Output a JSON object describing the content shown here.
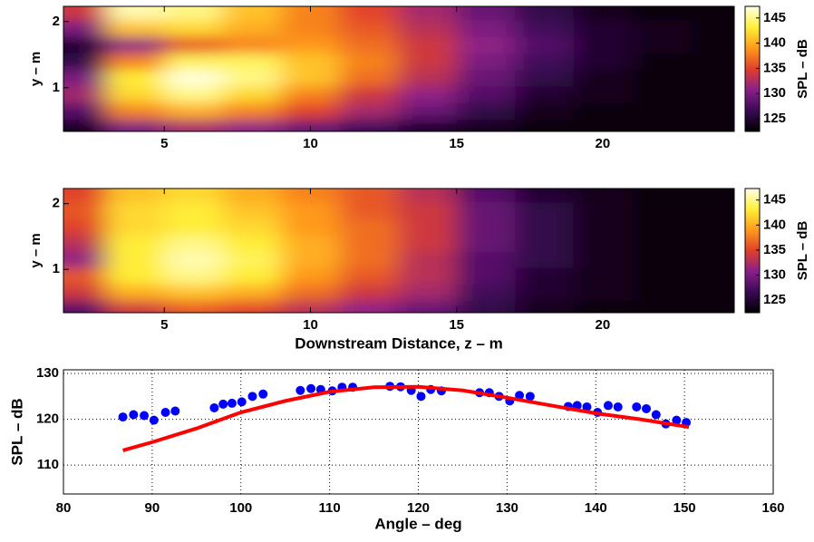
{
  "chart_data": [
    {
      "type": "heatmap",
      "ylabel": "y – m",
      "colorbar_label": "SPL – dB",
      "x": [
        2,
        4,
        6,
        8,
        10,
        12,
        14,
        16,
        18,
        20,
        22,
        24
      ],
      "y": [
        0.4,
        0.65,
        0.9,
        1.15,
        1.4,
        1.65,
        1.9,
        2.15
      ],
      "z": [
        [
          124,
          130,
          132,
          131,
          129,
          127,
          125,
          124,
          123,
          123,
          123,
          123
        ],
        [
          128,
          138,
          140,
          138,
          135,
          132,
          129,
          126,
          124,
          123,
          123,
          123
        ],
        [
          132,
          142,
          145,
          142,
          138,
          134,
          131,
          128,
          125,
          124,
          123,
          123
        ],
        [
          130,
          143,
          147,
          145,
          141,
          137,
          133,
          129,
          126,
          124,
          123,
          123
        ],
        [
          126,
          138,
          144,
          144,
          141,
          138,
          134,
          130,
          127,
          125,
          123,
          123
        ],
        [
          125,
          131,
          136,
          138,
          139,
          137,
          134,
          131,
          128,
          125,
          124,
          123
        ],
        [
          130,
          141,
          142,
          140,
          138,
          136,
          133,
          130,
          127,
          125,
          124,
          123
        ],
        [
          134,
          146,
          145,
          141,
          138,
          135,
          132,
          129,
          126,
          124,
          123,
          123
        ]
      ],
      "xlim": [
        1.55,
        24.5
      ],
      "ylim": [
        0.34,
        2.23
      ],
      "xticks": [
        5,
        10,
        15,
        20
      ],
      "yticks": [
        1,
        2
      ],
      "clim": [
        122.5,
        147.3
      ],
      "cticks": [
        125,
        130,
        135,
        140,
        145
      ],
      "colormap": [
        "#000000",
        "#3a0a55",
        "#8a1f8a",
        "#e0402a",
        "#ff9a1a",
        "#fff03a",
        "#ffffe8"
      ]
    },
    {
      "type": "heatmap",
      "ylabel": "y – m",
      "colorbar_label": "SPL – dB",
      "xlabel": "Downstream Distance, z – m",
      "x": [
        2,
        4,
        6,
        8,
        10,
        12,
        14,
        16,
        18,
        20,
        22,
        24
      ],
      "y": [
        0.4,
        0.65,
        0.9,
        1.15,
        1.4,
        1.65,
        1.9,
        2.15
      ],
      "z": [
        [
          128,
          134,
          136,
          135,
          133,
          131,
          129,
          126,
          124,
          123,
          123,
          123
        ],
        [
          134,
          140,
          141,
          140,
          137,
          134,
          132,
          127,
          125,
          124,
          123,
          123
        ],
        [
          136,
          143,
          145,
          143,
          139,
          136,
          133,
          128,
          125,
          124,
          123,
          123
        ],
        [
          131,
          143,
          146,
          144,
          140,
          137,
          133,
          128,
          126,
          124,
          123,
          123
        ],
        [
          133,
          143,
          145,
          143,
          140,
          137,
          134,
          129,
          126,
          124,
          123,
          123
        ],
        [
          135,
          142,
          143,
          142,
          139,
          137,
          134,
          129,
          126,
          124,
          123,
          123
        ],
        [
          136,
          142,
          143,
          141,
          139,
          136,
          134,
          129,
          126,
          124,
          123,
          123
        ],
        [
          135,
          141,
          142,
          140,
          138,
          136,
          133,
          128,
          125,
          124,
          123,
          123
        ]
      ],
      "xlim": [
        1.55,
        24.5
      ],
      "ylim": [
        0.34,
        2.23
      ],
      "xticks": [
        5,
        10,
        15,
        20
      ],
      "yticks": [
        1,
        2
      ],
      "clim": [
        122.5,
        147.3
      ],
      "cticks": [
        125,
        130,
        135,
        140,
        145
      ],
      "colormap": [
        "#000000",
        "#3a0a55",
        "#8a1f8a",
        "#e0402a",
        "#ff9a1a",
        "#fff03a",
        "#ffffe8"
      ]
    },
    {
      "type": "scatter",
      "xlabel": "Angle – deg",
      "ylabel": "SPL – dB",
      "xlim": [
        80,
        160
      ],
      "ylim": [
        103.7,
        130.8
      ],
      "xticks": [
        80,
        90,
        100,
        110,
        120,
        130,
        140,
        150,
        160
      ],
      "yticks": [
        110,
        120,
        130
      ],
      "grid": true,
      "series": [
        {
          "type": "scatter",
          "color": "#0000ff",
          "x": [
            86.7,
            87.9,
            89.1,
            90.2,
            91.5,
            92.6,
            97,
            98,
            99,
            100.1,
            101.3,
            102.5,
            106.7,
            107.9,
            109,
            110.3,
            111.4,
            112.6,
            116.8,
            118,
            119.2,
            120.3,
            121.4,
            122.6,
            126.9,
            128,
            129.1,
            130.3,
            131.4,
            132.6,
            136.9,
            137.9,
            139,
            140.2,
            141.4,
            142.5,
            144.6,
            145.7,
            146.8,
            147.9,
            149.1,
            150.2
          ],
          "values": [
            120.5,
            121,
            120.8,
            119.8,
            121.5,
            121.8,
            122.5,
            123.3,
            123.5,
            123.8,
            125,
            125.5,
            126.3,
            126.7,
            126.5,
            126.2,
            127,
            127,
            127.2,
            127.1,
            126.3,
            125,
            126.5,
            126.2,
            125.8,
            125.8,
            125,
            124,
            125.2,
            125,
            122.8,
            123,
            122.7,
            121.5,
            123,
            122.7,
            122.7,
            122.3,
            121,
            119,
            119.8,
            119.3
          ]
        },
        {
          "type": "line",
          "color": "#ff0000",
          "x": [
            86.7,
            90,
            95,
            100,
            105,
            110,
            115,
            120,
            125,
            130,
            135,
            140,
            145,
            150.5
          ],
          "values": [
            113.2,
            115,
            118,
            121.5,
            124,
            126,
            127,
            127.1,
            126.3,
            124.7,
            123,
            121.3,
            120,
            118.3
          ]
        }
      ]
    }
  ]
}
